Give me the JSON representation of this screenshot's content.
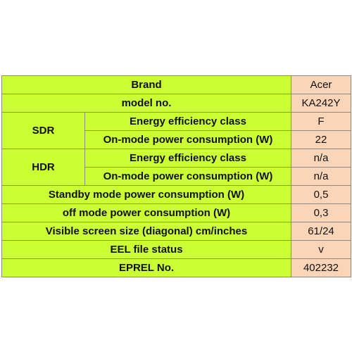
{
  "table": {
    "rows": [
      {
        "label": "Brand",
        "value": "Acer"
      },
      {
        "label": "model no.",
        "value": "KA242Y"
      },
      {
        "group": "SDR",
        "rows": [
          {
            "label": "Energy efficiency class",
            "value": "F"
          },
          {
            "label": "On-mode power consumption (W)",
            "value": "22"
          }
        ]
      },
      {
        "group": "HDR",
        "rows": [
          {
            "label": "Energy efficiency class",
            "value": "n/a"
          },
          {
            "label": "On-mode power consumption (W)",
            "value": "n/a"
          }
        ]
      },
      {
        "label": "Standby mode power consumption  (W)",
        "value": "0,5"
      },
      {
        "label": "off mode power consumption  (W)",
        "value": "0,3"
      },
      {
        "label": "Visible screen size (diagonal) cm/inches",
        "value": "61/24"
      },
      {
        "label": "EEL file status",
        "value": "v"
      },
      {
        "label": "EPREL No.",
        "value": "402232"
      }
    ]
  }
}
